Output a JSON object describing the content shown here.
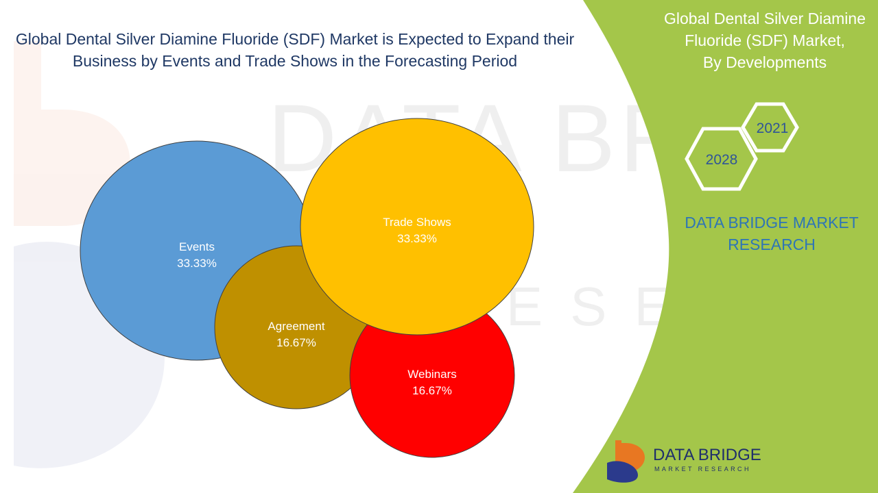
{
  "title_line1": "Global Dental Silver Diamine Fluoride (SDF) Market is Expected to Expand their",
  "title_line2": "Business by Events and Trade Shows in the Forecasting Period",
  "side_panel": {
    "title_line1": "Global Dental Silver Diamine",
    "title_line2": "Fluoride (SDF) Market,",
    "title_line3": "By Developments",
    "year_start": "2021",
    "year_end": "2028",
    "brand_line1": "DATA BRIDGE MARKET",
    "brand_line2": "RESEARCH",
    "panel_color": "#a4c64a"
  },
  "logo": {
    "name": "DATA BRIDGE",
    "tagline": "MARKET RESEARCH"
  },
  "chart_data": {
    "type": "bubble",
    "series": [
      {
        "name": "Events",
        "value": "33.33%",
        "share": 33.33,
        "color": "#5b9bd5"
      },
      {
        "name": "Agreement",
        "value": "16.67%",
        "share": 16.67,
        "color": "#bf9000"
      },
      {
        "name": "Trade Shows",
        "value": "33.33%",
        "share": 33.33,
        "color": "#ffc000"
      },
      {
        "name": "Webinars",
        "value": "16.67%",
        "share": 16.67,
        "color": "#ff0000"
      }
    ]
  }
}
